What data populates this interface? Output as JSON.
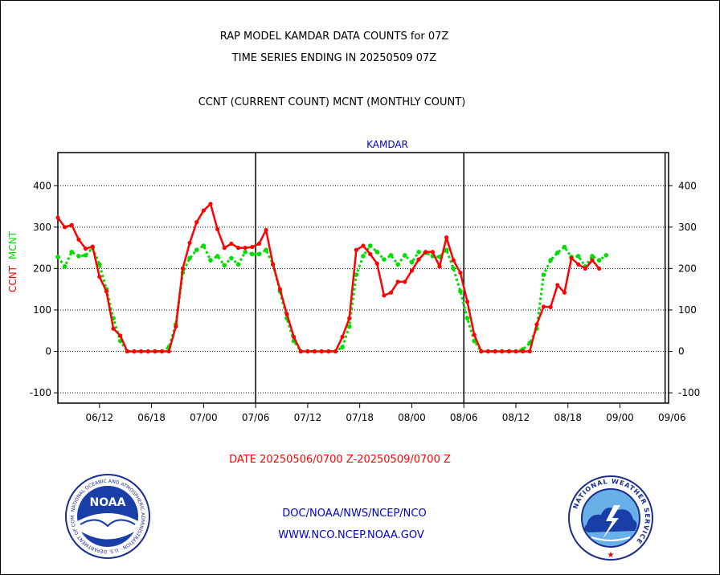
{
  "header": {
    "title_line1": "RAP MODEL KAMDAR DATA COUNTS for 07Z",
    "title_line2": "TIME SERIES ENDING IN 20250509 07Z",
    "subtitle": "CCNT (CURRENT COUNT) MCNT (MONTHLY COUNT)"
  },
  "footer": {
    "date_range": "DATE 20250506/0700 Z-20250509/0700 Z",
    "link1": "DOC/NOAA/NWS/NCEP/NCO",
    "link2": "WWW.NCO.NCEP.NOAA.GOV"
  },
  "logos": {
    "noaa_name": "NOAA",
    "nws_name": "NATIONAL WEATHER SERVICE"
  },
  "colors": {
    "ccnt": "#ff0000",
    "mcnt": "#00dd00",
    "plot_label": "#0000cc",
    "date_text": "#ff0000",
    "link_text": "#0000cc"
  },
  "chart_data": {
    "type": "line",
    "title": "KAMDAR",
    "ylabel_left": [
      "CCNT",
      "MCNT"
    ],
    "ylim": [
      -125,
      480
    ],
    "yticks": [
      -100,
      0,
      100,
      200,
      300,
      400
    ],
    "xlim": [
      0,
      88
    ],
    "xticks": [
      {
        "x": 6,
        "label": "06/12"
      },
      {
        "x": 13.5,
        "label": "06/18"
      },
      {
        "x": 21,
        "label": "07/00"
      },
      {
        "x": 28.5,
        "label": "07/06"
      },
      {
        "x": 36,
        "label": "07/12"
      },
      {
        "x": 43.5,
        "label": "07/18"
      },
      {
        "x": 51,
        "label": "08/00"
      },
      {
        "x": 58.5,
        "label": "08/06"
      },
      {
        "x": 66,
        "label": "08/12"
      },
      {
        "x": 73.5,
        "label": "08/18"
      },
      {
        "x": 81,
        "label": "09/00"
      },
      {
        "x": 88.5,
        "label": "09/06"
      }
    ],
    "day_boundaries": [
      28.5,
      58.5,
      87.5
    ],
    "grid": true,
    "series": [
      {
        "name": "CCNT",
        "color": "#ff0000",
        "values": [
          323,
          300,
          305,
          270,
          248,
          253,
          180,
          145,
          55,
          38,
          0,
          0,
          0,
          0,
          0,
          0,
          0,
          60,
          200,
          262,
          312,
          340,
          356,
          295,
          250,
          260,
          250,
          250,
          252,
          260,
          293,
          210,
          150,
          90,
          35,
          0,
          0,
          0,
          0,
          0,
          0,
          35,
          80,
          245,
          255,
          235,
          212,
          135,
          142,
          168,
          168,
          195,
          222,
          240,
          240,
          205,
          275,
          220,
          190,
          120,
          40,
          0,
          0,
          0,
          0,
          0,
          0,
          0,
          0,
          65,
          108,
          107,
          160,
          142,
          225,
          210,
          200,
          220,
          200
        ]
      },
      {
        "name": "MCNT",
        "color": "#00dd00",
        "values": [
          228,
          205,
          240,
          230,
          232,
          250,
          210,
          150,
          80,
          25,
          0,
          0,
          0,
          0,
          0,
          0,
          10,
          65,
          190,
          225,
          245,
          255,
          220,
          230,
          208,
          225,
          210,
          240,
          235,
          235,
          245,
          210,
          145,
          80,
          25,
          0,
          0,
          0,
          0,
          0,
          0,
          10,
          60,
          185,
          230,
          255,
          240,
          222,
          232,
          210,
          232,
          215,
          240,
          238,
          230,
          228,
          245,
          200,
          145,
          80,
          25,
          0,
          0,
          0,
          0,
          0,
          0,
          5,
          20,
          55,
          185,
          220,
          238,
          252,
          228,
          230,
          205,
          230,
          220,
          232
        ]
      }
    ]
  }
}
